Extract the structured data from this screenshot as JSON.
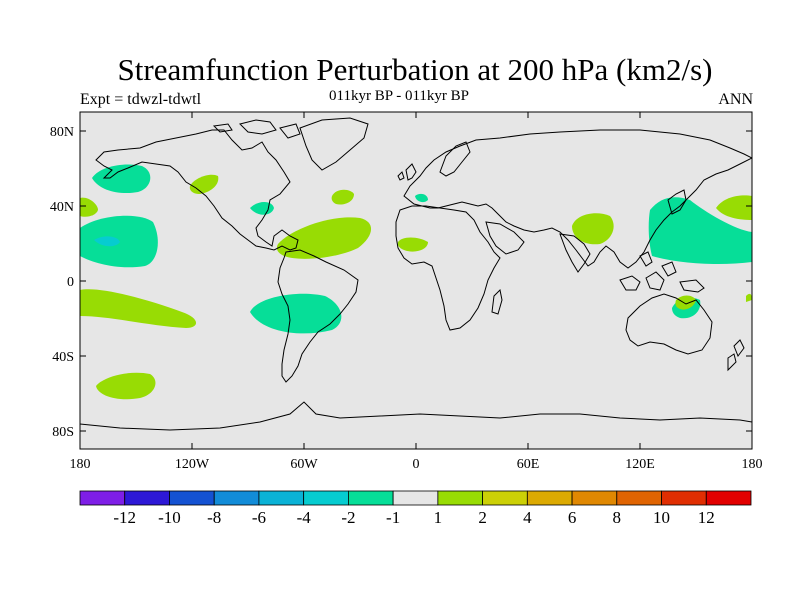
{
  "title": "Streamfunction Perturbation at 200 hPa (km2/s)",
  "left_string": "Expt = tdwzl-tdwtl",
  "center_string": "011kyr BP - 011kyr BP",
  "right_string": "ANN",
  "lat_labels": [
    "80N",
    "40N",
    "0",
    "40S",
    "80S"
  ],
  "lon_labels": [
    "180",
    "120W",
    "60W",
    "0",
    "60E",
    "120E",
    "180"
  ],
  "colorbar": {
    "colors": [
      "#7e1ee6",
      "#2d18d6",
      "#1452d2",
      "#128cd8",
      "#0ab2d6",
      "#06ccd0",
      "#06de98",
      "#e6e6e6",
      "#98dc04",
      "#ccd006",
      "#dcaa02",
      "#e08802",
      "#e06402",
      "#e02e02",
      "#e20000"
    ],
    "labels": [
      "-12",
      "-10",
      "-8",
      "-6",
      "-4",
      "-2",
      "-1",
      "1",
      "2",
      "4",
      "6",
      "8",
      "10",
      "12"
    ]
  },
  "colors": {
    "ocean_background": "#e6e6e6",
    "coast": "#000000",
    "neg_fill": "#06de98",
    "pos_fill": "#98dc04",
    "deep_neg_fill": "#06ccd0"
  }
}
